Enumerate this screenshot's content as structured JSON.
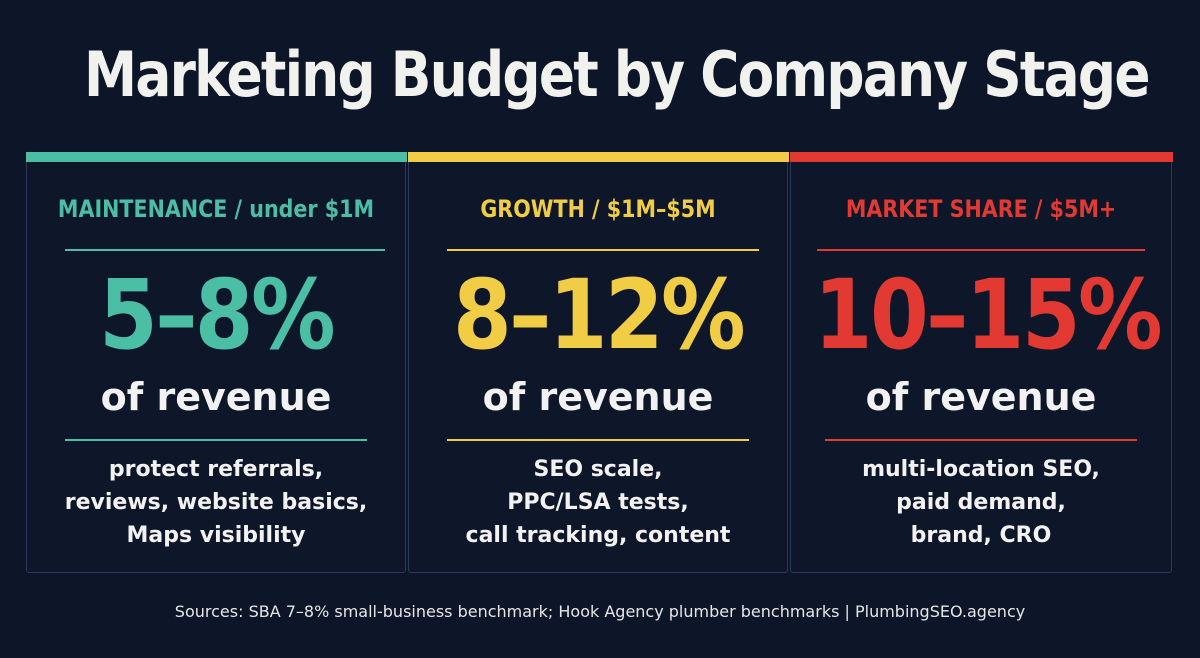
{
  "title": "Marketing Budget by Company Stage",
  "colors": {
    "background": "#0d1628",
    "teal": "#4bbfa6",
    "yellow": "#f1cc45",
    "red": "#e23a33"
  },
  "cards": [
    {
      "heading": "MAINTENANCE / under $1M",
      "percent": "5–8%",
      "sub": "of revenue",
      "lines": [
        "protect referrals,",
        "reviews, website basics,",
        "Maps visibility"
      ],
      "color": "#4bbfa6"
    },
    {
      "heading": "GROWTH / $1M–$5M",
      "percent": "8–12%",
      "sub": "of revenue",
      "lines": [
        "SEO scale,",
        "PPC/LSA tests,",
        "call tracking, content"
      ],
      "color": "#f1cc45"
    },
    {
      "heading": "MARKET SHARE / $5M+",
      "percent": "10–15%",
      "sub": "of revenue",
      "lines": [
        "multi-location SEO,",
        "paid demand,",
        "brand, CRO"
      ],
      "color": "#e23a33"
    }
  ],
  "footer": "Sources: SBA 7–8% small-business benchmark; Hook Agency plumber benchmarks | PlumbingSEO.agency"
}
